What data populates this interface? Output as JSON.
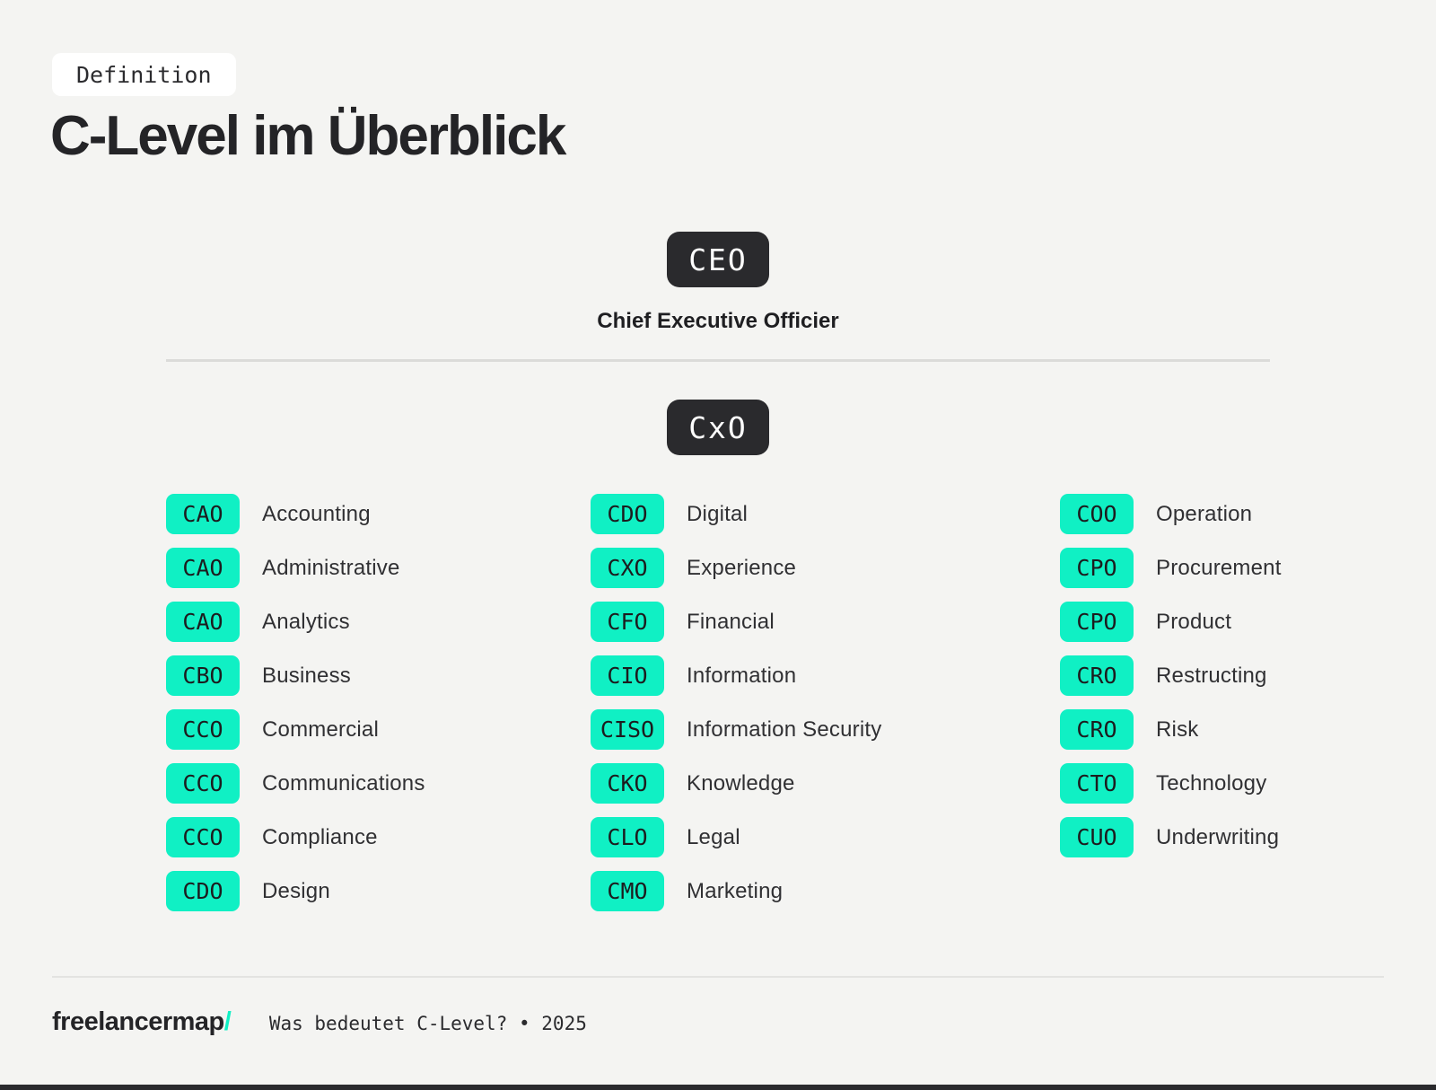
{
  "page": {
    "background": "#F4F4F2",
    "accent_mint": "#10F0C4",
    "dark": "#2A2A2D"
  },
  "header": {
    "badge": "Definition",
    "title": "C-Level im Überblick"
  },
  "ceo": {
    "abbr": "CEO",
    "full": "Chief Executive Officier"
  },
  "cxo": {
    "abbr": "CxO"
  },
  "columns": [
    {
      "items": [
        {
          "abbr": "CAO",
          "label": "Accounting"
        },
        {
          "abbr": "CAO",
          "label": "Administrative"
        },
        {
          "abbr": "CAO",
          "label": "Analytics"
        },
        {
          "abbr": "CBO",
          "label": "Business"
        },
        {
          "abbr": "CCO",
          "label": "Commercial"
        },
        {
          "abbr": "CCO",
          "label": "Communications"
        },
        {
          "abbr": "CCO",
          "label": "Compliance"
        },
        {
          "abbr": "CDO",
          "label": "Design"
        }
      ]
    },
    {
      "items": [
        {
          "abbr": "CDO",
          "label": "Digital"
        },
        {
          "abbr": "CXO",
          "label": "Experience"
        },
        {
          "abbr": "CFO",
          "label": "Financial"
        },
        {
          "abbr": "CIO",
          "label": "Information"
        },
        {
          "abbr": "CISO",
          "label": "Information Security"
        },
        {
          "abbr": "CKO",
          "label": "Knowledge"
        },
        {
          "abbr": "CLO",
          "label": "Legal"
        },
        {
          "abbr": "CMO",
          "label": "Marketing"
        }
      ]
    },
    {
      "items": [
        {
          "abbr": "COO",
          "label": "Operation"
        },
        {
          "abbr": "CPO",
          "label": "Procurement"
        },
        {
          "abbr": "CPO",
          "label": "Product"
        },
        {
          "abbr": "CRO",
          "label": "Restructing"
        },
        {
          "abbr": "CRO",
          "label": "Risk"
        },
        {
          "abbr": "CTO",
          "label": "Technology"
        },
        {
          "abbr": "CUO",
          "label": "Underwriting"
        }
      ]
    }
  ],
  "footer": {
    "brand": "freelancermap",
    "slash": "/",
    "tagline": "Was bedeutet C-Level? • 2025"
  }
}
